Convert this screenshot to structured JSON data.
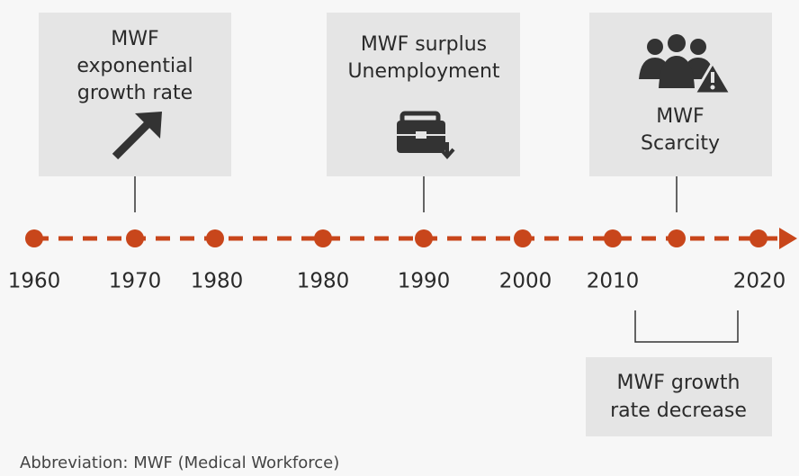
{
  "events": [
    {
      "lines": [
        "MWF",
        "exponential",
        "growth rate"
      ]
    },
    {
      "lines": [
        "MWF surplus",
        "Unemployment"
      ]
    },
    {
      "lines": [
        "MWF",
        "Scarcity"
      ]
    }
  ],
  "years": [
    "1960",
    "1970",
    "1980",
    "1980",
    "1990",
    "2000",
    "2010",
    "2020"
  ],
  "note": {
    "lines": [
      "MWF growth",
      "rate decrease"
    ]
  },
  "footnote": "Abbreviation: MWF (Medical Workforce)"
}
